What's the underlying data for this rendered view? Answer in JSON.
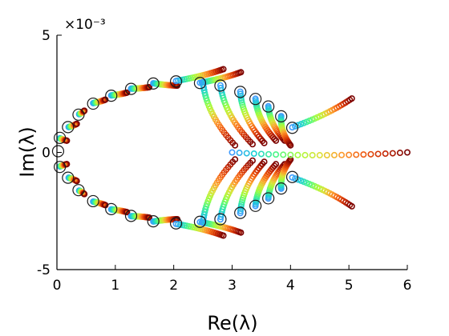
{
  "chart_data": {
    "type": "scatter",
    "title": "",
    "xlabel": "Re(λ)",
    "ylabel": "Im(λ)",
    "y_scale_exponent": "×10⁻³",
    "xlim": [
      0,
      6
    ],
    "ylim": [
      -5,
      5
    ],
    "xticks": [
      "0",
      "1",
      "2",
      "3",
      "4",
      "5",
      "6"
    ],
    "yticks": [
      "-5",
      "0",
      "5"
    ],
    "grid": false,
    "legend": "none",
    "colormap": [
      "#7a0403",
      "#c42503",
      "#f05b12",
      "#fe9b2d",
      "#dde037",
      "#a4fc3c",
      "#4af787",
      "#1bcfd4",
      "#3e9bfe"
    ],
    "series": [
      {
        "marker": "open-circle-black",
        "points": [
          [
            0.02,
            0.05
          ],
          [
            0.05,
            0.62
          ],
          [
            0.05,
            -0.62
          ],
          [
            0.19,
            1.08
          ],
          [
            0.19,
            -1.08
          ],
          [
            0.37,
            1.61
          ],
          [
            0.37,
            -1.61
          ],
          [
            0.62,
            2.08
          ],
          [
            0.62,
            -2.08
          ],
          [
            0.93,
            2.42
          ],
          [
            0.93,
            -2.42
          ],
          [
            1.27,
            2.71
          ],
          [
            1.27,
            -2.71
          ],
          [
            1.65,
            2.94
          ],
          [
            1.65,
            -2.94
          ],
          [
            2.04,
            3.03
          ],
          [
            2.04,
            -3.03
          ],
          [
            2.45,
            2.96
          ],
          [
            2.45,
            -2.96
          ],
          [
            2.8,
            2.85
          ],
          [
            2.8,
            -2.85
          ],
          [
            3.14,
            2.58
          ],
          [
            3.14,
            -2.58
          ],
          [
            3.4,
            2.28
          ],
          [
            3.4,
            -2.28
          ],
          [
            3.62,
            1.96
          ],
          [
            3.62,
            -1.96
          ],
          [
            3.84,
            1.54
          ],
          [
            3.84,
            -1.54
          ],
          [
            4.03,
            1.05
          ],
          [
            4.03,
            -1.05
          ]
        ]
      },
      {
        "marker": "colored-circle-trails",
        "branches": [
          {
            "from": [
              0.05,
              0.6
            ],
            "to": [
              0.17,
              0.5
            ]
          },
          {
            "from": [
              0.2,
              1.08
            ],
            "to": [
              0.34,
              1.22
            ]
          },
          {
            "from": [
              0.38,
              1.63
            ],
            "to": [
              0.47,
              1.78
            ]
          },
          {
            "from": [
              0.62,
              2.1
            ],
            "to": [
              0.83,
              2.25
            ]
          },
          {
            "from": [
              0.93,
              2.43
            ],
            "to": [
              1.2,
              2.55
            ]
          },
          {
            "from": [
              1.27,
              2.72
            ],
            "to": [
              1.58,
              2.78
            ]
          },
          {
            "from": [
              1.65,
              2.95
            ],
            "to": [
              2.06,
              2.85
            ]
          },
          {
            "from": [
              2.04,
              3.05
            ],
            "to": [
              2.85,
              3.55
            ]
          },
          {
            "from": [
              2.45,
              2.97
            ],
            "to": [
              3.15,
              3.42
            ]
          },
          {
            "from": [
              2.5,
              3.0
            ],
            "to": [
              3.05,
              0.3
            ]
          },
          {
            "from": [
              2.8,
              2.86
            ],
            "to": [
              3.35,
              0.35
            ]
          },
          {
            "from": [
              3.14,
              2.59
            ],
            "to": [
              3.55,
              0.4
            ]
          },
          {
            "from": [
              3.4,
              2.29
            ],
            "to": [
              3.75,
              0.5
            ]
          },
          {
            "from": [
              3.62,
              1.97
            ],
            "to": [
              3.9,
              0.5
            ]
          },
          {
            "from": [
              3.84,
              1.55
            ],
            "to": [
              4.0,
              0.3
            ]
          },
          {
            "from": [
              4.03,
              1.07
            ],
            "to": [
              5.05,
              2.3
            ]
          },
          {
            "from": [
              3.0,
              0.0
            ],
            "to": [
              6.0,
              0.0
            ]
          }
        ]
      }
    ]
  }
}
